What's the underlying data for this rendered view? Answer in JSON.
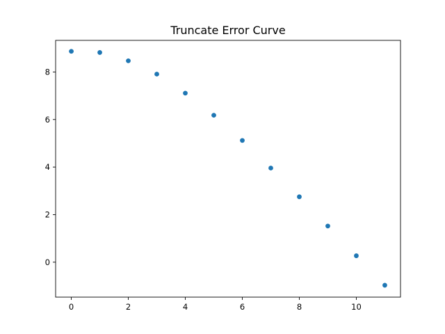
{
  "chart_data": {
    "type": "scatter",
    "title": "Truncate Error Curve",
    "xlabel": "",
    "ylabel": "",
    "x": [
      0,
      1,
      2,
      3,
      4,
      5,
      6,
      7,
      8,
      9,
      10,
      11
    ],
    "y": [
      8.87,
      8.82,
      8.47,
      7.91,
      7.11,
      6.18,
      5.12,
      3.96,
      2.75,
      1.52,
      0.27,
      -0.97
    ],
    "xlim": [
      -0.55,
      11.55
    ],
    "ylim": [
      -1.47,
      9.33
    ],
    "xticks": [
      0,
      2,
      4,
      6,
      8,
      10
    ],
    "yticks": [
      0,
      2,
      4,
      6,
      8
    ],
    "grid": false,
    "marker_color": "#1f77b4"
  }
}
